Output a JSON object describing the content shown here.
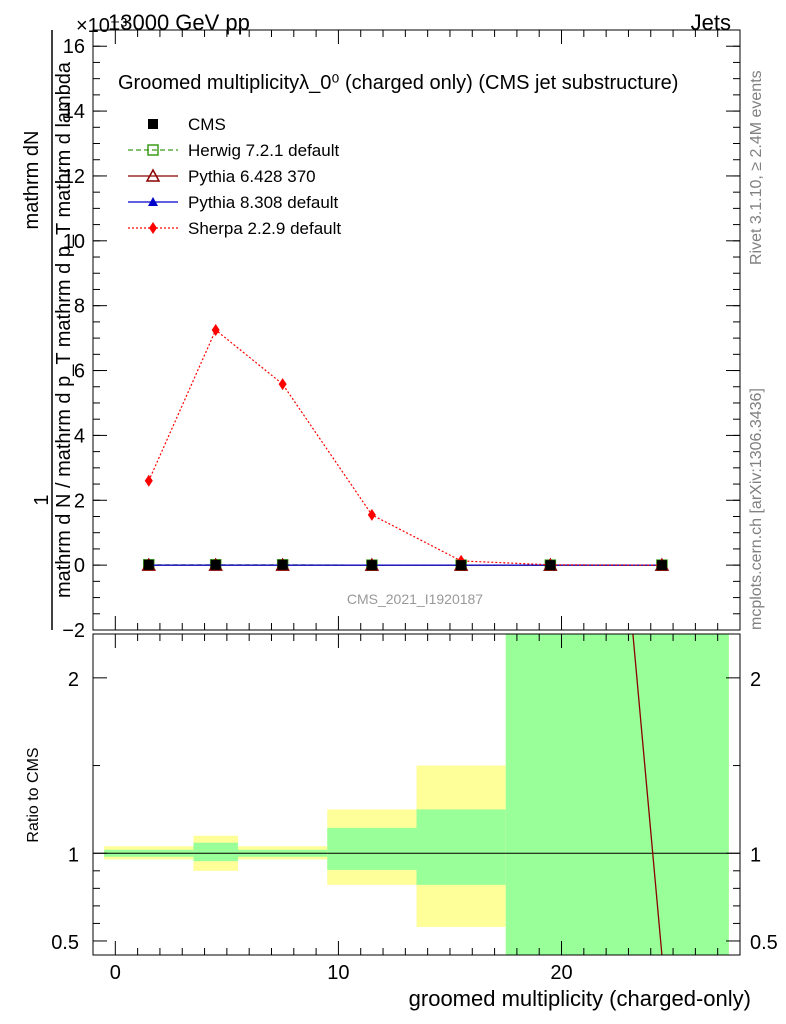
{
  "header": {
    "left": "13000 GeV pp",
    "right": "Jets",
    "exponent": "×10⁻³"
  },
  "side_labels": {
    "rivet": "Rivet 3.1.10, ≥ 2.4M events",
    "mcplots": "mcplots.cern.ch [arXiv:1306.3436]"
  },
  "colors": {
    "cms": "#000000",
    "herwig": "#3a9a1a",
    "pythia6": "#8b0000",
    "pythia8": "#0000cc",
    "sherpa": "#ff0000",
    "band_yellow": "#ffff99",
    "band_green": "#99ff99"
  },
  "chart_data": [
    {
      "type": "line",
      "panel": "main",
      "title": "Groomed multiplicityλ_0⁰ (charged only) (CMS jet substructure)",
      "ylabel_fraction_top": "1",
      "ylabel_fraction_numerator": "mathrm dN",
      "ylabel_fraction_denominator": "mathrm d N / mathrm d p_T mathrm d p_T mathrm d lambda",
      "watermark": "CMS_2021_I1920187",
      "ylim": [
        -2,
        16.5
      ],
      "xlim": [
        -1,
        28
      ],
      "yticks": [
        -2,
        0,
        2,
        4,
        6,
        8,
        10,
        12,
        14,
        16
      ],
      "ytick_labels": [
        "−2",
        "0",
        "2",
        "4",
        "6",
        "8",
        "10",
        "12",
        "14",
        "16"
      ],
      "x": [
        1.5,
        4.5,
        7.5,
        11.5,
        15.5,
        19.5,
        24.5
      ],
      "series": [
        {
          "name": "CMS",
          "values": [
            0.01,
            0.01,
            0.01,
            0.0,
            0.0,
            0.0,
            0.0
          ]
        },
        {
          "name": "Herwig 7.2.1 default",
          "values": [
            0.01,
            0.01,
            0.01,
            0.0,
            0.0,
            0.0,
            0.0
          ]
        },
        {
          "name": "Pythia 6.428 370",
          "values": [
            0.0,
            0.0,
            0.0,
            0.0,
            0.0,
            0.0,
            0.0
          ]
        },
        {
          "name": "Pythia 8.308 default",
          "values": [
            0.0,
            0.0,
            0.0,
            0.0,
            0.0,
            0.0,
            0.0
          ]
        },
        {
          "name": "Sherpa 2.2.9 default",
          "values": [
            2.6,
            7.25,
            5.58,
            1.55,
            0.13,
            0.01,
            0.0
          ]
        }
      ]
    },
    {
      "type": "line",
      "panel": "ratio",
      "xlabel": "groomed multiplicity (charged-only)",
      "ylabel": "Ratio to CMS",
      "ylim": [
        0.42,
        2.25
      ],
      "xlim": [
        -1,
        28
      ],
      "yticks": [
        0.5,
        1,
        2
      ],
      "ytick_labels": [
        "0.5",
        "1",
        "2"
      ],
      "xticks": [
        0,
        10,
        20
      ],
      "xtick_labels": [
        "0",
        "10",
        "20"
      ],
      "bands": [
        {
          "x0": -0.5,
          "x1": 3.5,
          "yellow": [
            0.965,
            1.04
          ],
          "green": [
            0.98,
            1.02
          ]
        },
        {
          "x0": 3.5,
          "x1": 5.5,
          "yellow": [
            0.9,
            1.1
          ],
          "green": [
            0.955,
            1.06
          ]
        },
        {
          "x0": 5.5,
          "x1": 9.5,
          "yellow": [
            0.965,
            1.04
          ],
          "green": [
            0.98,
            1.02
          ]
        },
        {
          "x0": 9.5,
          "x1": 13.5,
          "yellow": [
            0.82,
            1.25
          ],
          "green": [
            0.905,
            1.145
          ]
        },
        {
          "x0": 13.5,
          "x1": 17.5,
          "yellow": [
            0.58,
            1.5
          ],
          "green": [
            0.82,
            1.25
          ]
        },
        {
          "x0": 17.5,
          "x1": 27.5,
          "yellow": [
            0.42,
            2.25
          ],
          "green": [
            0.42,
            2.25
          ]
        }
      ],
      "pythia6_ratio_line": {
        "x": [
          23.2,
          24.5
        ],
        "y": [
          2.25,
          0.42
        ]
      }
    }
  ]
}
